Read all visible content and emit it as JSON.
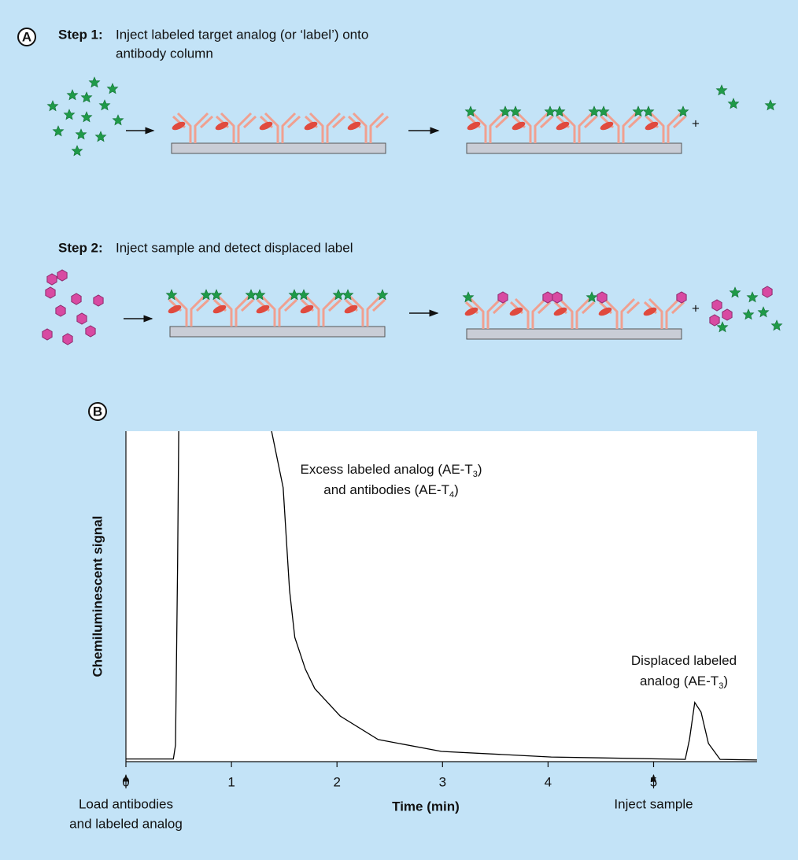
{
  "panel_a": {
    "label": "A",
    "step1": {
      "heading": "Step 1:",
      "lines": [
        "Inject labeled target analog (or ‘label’) onto",
        "antibody column"
      ]
    },
    "step2": {
      "heading": "Step 2:",
      "lines": [
        "Inject sample and detect displaced label"
      ]
    },
    "plus": "+"
  },
  "chart_data": {
    "type": "line",
    "panel_label": "B",
    "xlabel": "Time (min)",
    "ylabel": "Chemiluminescent signal",
    "x": [
      0,
      0.45,
      0.47,
      0.49,
      0.5,
      0.9,
      1.38,
      1.49,
      1.55,
      1.6,
      1.7,
      1.79,
      2.03,
      2.39,
      2.99,
      4.03,
      5.3,
      5.34,
      5.39,
      5.45,
      5.52,
      5.63,
      5.98
    ],
    "series": [
      {
        "color": "#000000",
        "values": [
          0.8,
          0.8,
          5,
          60,
          100,
          null,
          100,
          82.9,
          51.9,
          37.6,
          28,
          22.1,
          13.8,
          6.7,
          3.1,
          1.4,
          0.7,
          6.7,
          17.9,
          15,
          5.5,
          0.7,
          0.5
        ]
      }
    ],
    "xlim": [
      0,
      5.98
    ],
    "ylim": [
      0,
      100
    ],
    "xticks": [
      0,
      1,
      2,
      3,
      4,
      5
    ],
    "annotations": [
      {
        "lines": [
          [
            "Excess labeled analog (AE-T",
            "3",
            ")"
          ],
          [
            "and antibodies (AE-T",
            "4",
            ")"
          ]
        ]
      },
      {
        "lines": [
          [
            "Displaced labeled"
          ],
          [
            "analog (AE-T",
            "3",
            ")"
          ]
        ]
      }
    ],
    "markers": [
      {
        "x": 0,
        "lines": [
          "Load antibodies",
          "and labeled analog"
        ]
      },
      {
        "x": 5,
        "lines": [
          "Inject sample"
        ]
      }
    ]
  }
}
